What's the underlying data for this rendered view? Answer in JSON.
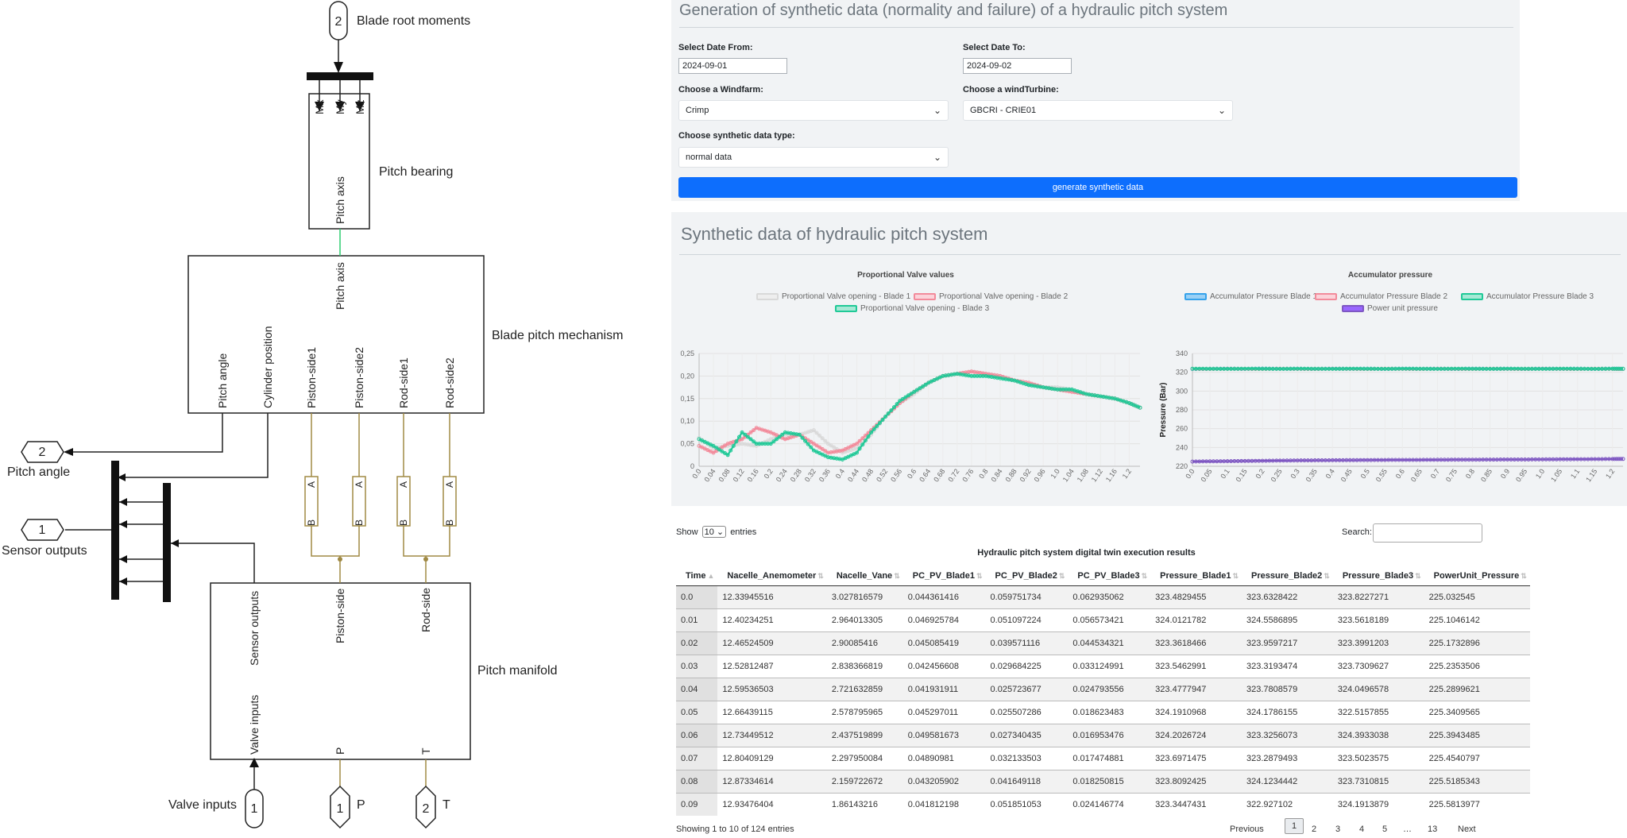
{
  "diagram": {
    "ports": {
      "blade_root_num": "2",
      "blade_root_label": "Blade root moments",
      "pitch_angle_num": "2",
      "pitch_angle_label": "Pitch angle",
      "sensor_num": "1",
      "sensor_label": "Sensor outputs",
      "valve_num": "1",
      "valve_label": "Valve inputs",
      "p_num": "1",
      "p_label": "P",
      "t_num": "2",
      "t_label": "T"
    },
    "pitch_bearing": {
      "label": "Pitch bearing",
      "mx": "Mx",
      "my": "My",
      "mz": "Mz",
      "axis": "Pitch axis"
    },
    "mechanism": {
      "label": "Blade pitch mechanism",
      "axis": "Pitch axis",
      "pitch_angle": "Pitch angle",
      "cylinder": "Cylinder position",
      "piston1": "Piston-side1",
      "piston2": "Piston-side2",
      "rod1": "Rod-side1",
      "rod2": "Rod-side2",
      "cyl_a": "A",
      "cyl_b": "B"
    },
    "manifold": {
      "label": "Pitch manifold",
      "sensor": "Sensor outputs",
      "valve": "Valve inputs",
      "piston": "Piston-side",
      "rod": "Rod-side",
      "p": "P",
      "t": "T"
    }
  },
  "form": {
    "title": "Generation of synthetic data (normality and failure) of a hydraulic pitch system",
    "date_from_label": "Select Date From:",
    "date_from_value": "2024-09-01",
    "date_to_label": "Select Date To:",
    "date_to_value": "2024-09-02",
    "windfarm_label": "Choose a Windfarm:",
    "windfarm_value": "Crimp",
    "turbine_label": "Choose a windTurbine:",
    "turbine_value": "GBCRI - CRIE01",
    "datatype_label": "Choose synthetic data type:",
    "datatype_value": "normal data",
    "generate_button": "generate synthetic data"
  },
  "charts_section": {
    "title": "Synthetic data of hydraulic pitch system"
  },
  "chart_data": [
    {
      "type": "line",
      "title": "Proportional Valve values",
      "x": [
        0.0,
        0.04,
        0.08,
        0.12,
        0.16,
        0.2,
        0.24,
        0.28,
        0.32,
        0.36,
        0.4,
        0.44,
        0.48,
        0.52,
        0.56,
        0.6,
        0.64,
        0.68,
        0.72,
        0.76,
        0.8,
        0.84,
        0.88,
        0.92,
        0.96,
        1.0,
        1.04,
        1.08,
        1.12,
        1.16,
        1.2,
        1.23
      ],
      "x_tick_labels": [
        "0.0",
        "0.04",
        "0.08",
        "0.12",
        "0.16",
        "0.2",
        "0.24",
        "0.28",
        "0.32",
        "0.36",
        "0.4",
        "0.44",
        "0.48",
        "0.52",
        "0.56",
        "0.6",
        "0.64",
        "0.68",
        "0.72",
        "0.76",
        "0.8",
        "0.84",
        "0.88",
        "0.92",
        "0.96",
        "1.0",
        "1.04",
        "1.08",
        "1.12",
        "1.16",
        "1.2"
      ],
      "y_tick_labels": [
        "0",
        "0,05",
        "0,10",
        "0,15",
        "0,20",
        "0,25"
      ],
      "ylim": [
        0,
        0.25
      ],
      "series": [
        {
          "name": "Proportional Valve opening - Blade 1",
          "color": "#d9d9d9",
          "values": [
            0.063,
            0.04,
            0.045,
            0.05,
            0.045,
            0.06,
            0.07,
            0.07,
            0.08,
            0.05,
            0.03,
            0.04,
            0.07,
            0.11,
            0.14,
            0.16,
            0.185,
            0.2,
            0.205,
            0.21,
            0.205,
            0.2,
            0.19,
            0.18,
            0.175,
            0.175,
            0.17,
            0.16,
            0.155,
            0.15,
            0.14,
            0.13
          ]
        },
        {
          "name": "Proportional Valve opening - Blade 2",
          "color": "#f28b9b",
          "values": [
            0.045,
            0.03,
            0.05,
            0.06,
            0.085,
            0.075,
            0.06,
            0.07,
            0.05,
            0.03,
            0.035,
            0.05,
            0.08,
            0.11,
            0.14,
            0.165,
            0.185,
            0.2,
            0.205,
            0.21,
            0.205,
            0.2,
            0.19,
            0.185,
            0.175,
            0.17,
            0.165,
            0.16,
            0.155,
            0.15,
            0.14,
            0.13
          ]
        },
        {
          "name": "Proportional Valve opening - Blade 3",
          "color": "#20c997",
          "values": [
            0.06,
            0.045,
            0.025,
            0.075,
            0.05,
            0.05,
            0.075,
            0.07,
            0.035,
            0.02,
            0.015,
            0.03,
            0.075,
            0.11,
            0.145,
            0.165,
            0.185,
            0.2,
            0.205,
            0.2,
            0.2,
            0.195,
            0.19,
            0.18,
            0.175,
            0.17,
            0.17,
            0.16,
            0.155,
            0.15,
            0.14,
            0.13
          ]
        }
      ]
    },
    {
      "type": "line",
      "title": "Accumulator pressure",
      "ylabel": "Pressure (Bar)",
      "x": [
        0.0,
        0.05,
        0.1,
        0.15,
        0.2,
        0.25,
        0.3,
        0.35,
        0.4,
        0.45,
        0.5,
        0.55,
        0.6,
        0.65,
        0.7,
        0.75,
        0.8,
        0.85,
        0.9,
        0.95,
        1.0,
        1.05,
        1.1,
        1.15,
        1.2,
        1.23
      ],
      "x_tick_labels": [
        "0.0",
        "0.05",
        "0.1",
        "0.15",
        "0.2",
        "0.25",
        "0.3",
        "0.35",
        "0.4",
        "0.45",
        "0.5",
        "0.55",
        "0.6",
        "0.65",
        "0.7",
        "0.75",
        "0.8",
        "0.85",
        "0.9",
        "0.95",
        "1.0",
        "1.05",
        "1.1",
        "1.15",
        "1.2"
      ],
      "y_tick_labels": [
        "220",
        "240",
        "260",
        "280",
        "300",
        "320",
        "340"
      ],
      "ylim": [
        220,
        340
      ],
      "series": [
        {
          "name": "Accumulator Pressure Blade 1",
          "color": "#36a2eb",
          "values": [
            323.4,
            323.6,
            323.8,
            323.5,
            323.9,
            323.6,
            323.7,
            323.5,
            323.8,
            323.6,
            323.7,
            323.5,
            323.8,
            323.6,
            323.7,
            323.5,
            323.8,
            323.6,
            323.7,
            323.5,
            323.8,
            323.6,
            323.7,
            323.5,
            323.8,
            323.6
          ]
        },
        {
          "name": "Accumulator Pressure Blade 2",
          "color": "#f28b9b",
          "values": [
            323.6,
            323.5,
            323.7,
            323.6,
            323.5,
            323.7,
            323.6,
            323.5,
            323.7,
            323.6,
            323.5,
            323.7,
            323.6,
            323.5,
            323.7,
            323.6,
            323.5,
            323.7,
            323.6,
            323.5,
            323.7,
            323.6,
            323.5,
            323.7,
            323.6,
            323.5
          ]
        },
        {
          "name": "Accumulator Pressure Blade 3",
          "color": "#20c997",
          "values": [
            323.8,
            323.7,
            323.6,
            323.8,
            323.7,
            323.6,
            323.8,
            323.7,
            323.6,
            323.8,
            323.7,
            323.6,
            323.8,
            323.7,
            323.6,
            323.8,
            323.7,
            323.6,
            323.8,
            323.7,
            323.6,
            323.8,
            323.7,
            323.6,
            323.8,
            323.7
          ]
        },
        {
          "name": "Power unit pressure",
          "color": "#7e57c2",
          "values": [
            225.0,
            225.2,
            225.4,
            225.6,
            225.8,
            226.0,
            226.2,
            226.3,
            226.4,
            226.5,
            226.6,
            226.7,
            226.8,
            226.8,
            226.9,
            227.0,
            227.0,
            227.1,
            227.2,
            227.2,
            227.3,
            227.4,
            227.5,
            227.6,
            227.7,
            227.8
          ]
        }
      ]
    }
  ],
  "table": {
    "show_label": "Show",
    "entries_value": "10",
    "entries_label": "entries",
    "search_label": "Search:",
    "caption": "Hydraulic pitch system digital twin execution results",
    "columns": [
      "Time",
      "Nacelle_Anemometer",
      "Nacelle_Vane",
      "PC_PV_Blade1",
      "PC_PV_Blade2",
      "PC_PV_Blade3",
      "Pressure_Blade1",
      "Pressure_Blade2",
      "Pressure_Blade3",
      "PowerUnit_Pressure"
    ],
    "rows": [
      [
        "0.0",
        "12.33945516",
        "3.027816579",
        "0.044361416",
        "0.059751734",
        "0.062935062",
        "323.4829455",
        "323.6328422",
        "323.8227271",
        "225.032545"
      ],
      [
        "0.01",
        "12.40234251",
        "2.964013305",
        "0.046925784",
        "0.051097224",
        "0.056573421",
        "324.0121782",
        "324.5586895",
        "323.5618189",
        "225.1046142"
      ],
      [
        "0.02",
        "12.46524509",
        "2.90085416",
        "0.045085419",
        "0.039571116",
        "0.044534321",
        "323.3618466",
        "323.9597217",
        "323.3991203",
        "225.1732896"
      ],
      [
        "0.03",
        "12.52812487",
        "2.838366819",
        "0.042456608",
        "0.029684225",
        "0.033124991",
        "323.5462991",
        "323.3193474",
        "323.7309627",
        "225.2353506"
      ],
      [
        "0.04",
        "12.59536503",
        "2.721632859",
        "0.041931911",
        "0.025723677",
        "0.024793556",
        "323.4777947",
        "323.7808579",
        "324.0496578",
        "225.2899621"
      ],
      [
        "0.05",
        "12.66439115",
        "2.578795965",
        "0.045297011",
        "0.025507286",
        "0.018623483",
        "324.1910968",
        "324.1786155",
        "322.5157855",
        "225.3409565"
      ],
      [
        "0.06",
        "12.73449512",
        "2.437519899",
        "0.049581673",
        "0.027340435",
        "0.016953476",
        "324.2026724",
        "323.3256073",
        "324.3933038",
        "225.3943485"
      ],
      [
        "0.07",
        "12.80409129",
        "2.297950084",
        "0.04890981",
        "0.032133503",
        "0.017474881",
        "323.6971475",
        "323.2879493",
        "323.5023575",
        "225.4540797"
      ],
      [
        "0.08",
        "12.87334614",
        "2.159722672",
        "0.043205902",
        "0.041649118",
        "0.018250815",
        "323.8092425",
        "324.1234442",
        "323.7310815",
        "225.5185343"
      ],
      [
        "0.09",
        "12.93476404",
        "1.86143216",
        "0.041812198",
        "0.051851053",
        "0.024146774",
        "323.3447431",
        "322.927102",
        "324.1913879",
        "225.5813977"
      ]
    ],
    "info": "Showing 1 to 10 of 124 entries",
    "pagination": {
      "previous": "Previous",
      "pages": [
        "1",
        "2",
        "3",
        "4",
        "5",
        "…",
        "13"
      ],
      "next": "Next"
    }
  }
}
